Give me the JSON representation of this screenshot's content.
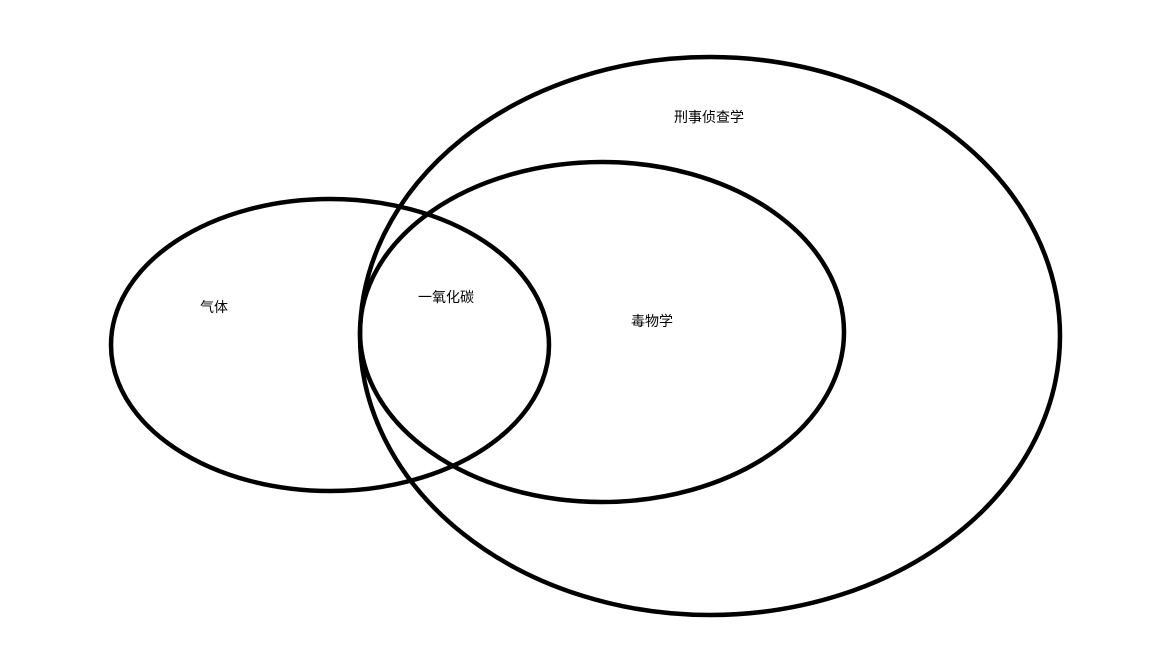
{
  "diagram": {
    "type": "venn",
    "sets": [
      {
        "id": "gas",
        "label": "气体"
      },
      {
        "id": "forensic",
        "label": "刑事侦查学"
      },
      {
        "id": "toxicology",
        "label": "毒物学"
      }
    ],
    "intersection_labels": [
      {
        "sets": [
          "gas",
          "toxicology",
          "forensic"
        ],
        "label": "一氧化碳"
      }
    ],
    "relations": [
      "毒物学 is contained within 刑事侦查学",
      "气体 partially overlaps 毒物学 and 刑事侦查学"
    ],
    "colors": {
      "outline": "#000000",
      "background": "#ffffff",
      "text": "#000000"
    }
  }
}
